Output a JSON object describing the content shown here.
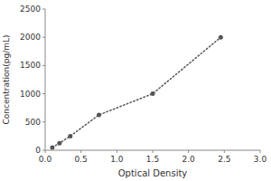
{
  "chart_data": {
    "type": "line",
    "xlabel": "Optical Density",
    "ylabel": "Concentration(pg/mL)",
    "x": [
      0.1,
      0.2,
      0.35,
      0.75,
      1.5,
      2.45
    ],
    "values": [
      50,
      125,
      250,
      625,
      1000,
      2000
    ],
    "xlim": [
      0,
      3
    ],
    "ylim": [
      0,
      2500
    ],
    "xticks": [
      {
        "value": 0,
        "label": "0.0"
      },
      0.5,
      {
        "value": 1,
        "label": "1.0"
      },
      1.5,
      {
        "value": 2,
        "label": "2.0"
      },
      2.5,
      {
        "value": 3,
        "label": "3.0"
      }
    ],
    "yticks": [
      0,
      500,
      1000,
      1500,
      2000,
      2500
    ],
    "color": "#555555",
    "line_style": "dotted",
    "marker": "circle",
    "grid": false
  }
}
